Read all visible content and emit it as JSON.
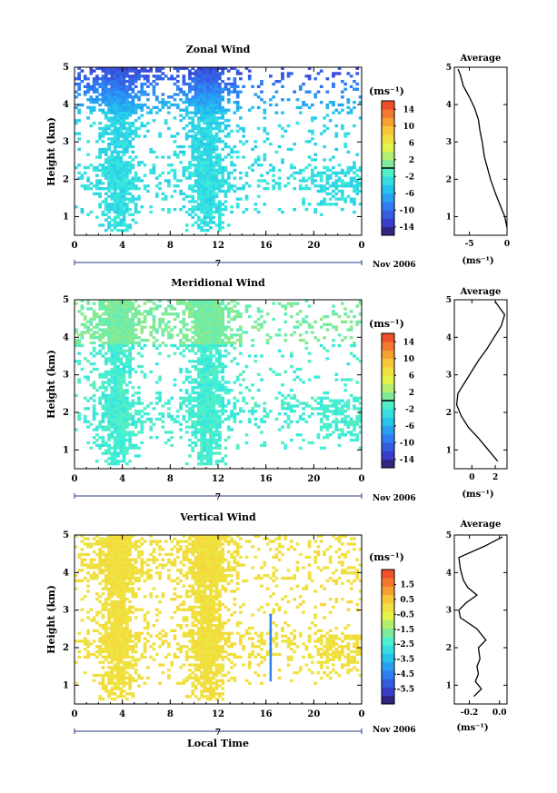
{
  "figure": {
    "y_axis_label": "Height (km)",
    "x_axis_label": "Local Time",
    "date_label": "Nov 2006",
    "day_marker": "7"
  },
  "chart_data": [
    {
      "type": "heatmap",
      "title": "Zonal Wind",
      "xlabel": "",
      "ylabel": "Height (km)",
      "xlim": [
        0,
        24
      ],
      "ylim": [
        0.5,
        5
      ],
      "x_ticks": [
        "0",
        "4",
        "8",
        "12",
        "16",
        "20",
        "0"
      ],
      "y_ticks": [
        "1",
        "2",
        "3",
        "4",
        "5"
      ],
      "colorbar": {
        "unit": "(ms⁻¹)",
        "min": -16,
        "max": 16,
        "tick_values": [
          14,
          10,
          6,
          2,
          -2,
          -6,
          -10,
          -14
        ],
        "tick_labels": [
          "14",
          "10",
          "6",
          "2",
          "-2",
          "-6",
          "-10",
          "-14"
        ],
        "contour_level": 0
      },
      "description_values": {
        "dominant_range": [
          -12,
          -2
        ],
        "upper_levels": -10
      },
      "profile": {
        "title": "Average",
        "xlabel": "(ms⁻¹)",
        "xlim": [
          -7,
          0
        ],
        "x_ticks": [
          "-5",
          "0"
        ],
        "x_tick_values": [
          -5,
          0
        ],
        "height_km": [
          0.7,
          1.0,
          1.3,
          1.6,
          2.0,
          2.3,
          2.6,
          3.0,
          3.3,
          3.6,
          3.9,
          4.2,
          4.5,
          4.8,
          4.95
        ],
        "values": [
          0.0,
          -0.3,
          -0.9,
          -1.5,
          -2.2,
          -2.6,
          -3.0,
          -3.3,
          -3.6,
          -3.8,
          -4.3,
          -5.0,
          -5.8,
          -6.2,
          -6.5
        ]
      }
    },
    {
      "type": "heatmap",
      "title": "Meridional Wind",
      "xlabel": "",
      "ylabel": "Height (km)",
      "xlim": [
        0,
        24
      ],
      "ylim": [
        0.5,
        5
      ],
      "x_ticks": [
        "0",
        "4",
        "8",
        "12",
        "16",
        "20",
        "0"
      ],
      "y_ticks": [
        "1",
        "2",
        "3",
        "4",
        "5"
      ],
      "colorbar": {
        "unit": "(ms⁻¹)",
        "min": -16,
        "max": 16,
        "tick_values": [
          14,
          10,
          6,
          2,
          -2,
          -6,
          -10,
          -14
        ],
        "tick_labels": [
          "14",
          "10",
          "6",
          "2",
          "-2",
          "-6",
          "-10",
          "-14"
        ],
        "contour_level": 0
      },
      "description_values": {
        "dominant_range": [
          -4,
          2
        ]
      },
      "profile": {
        "title": "Average",
        "xlabel": "(ms⁻¹)",
        "xlim": [
          -1.5,
          3
        ],
        "x_ticks": [
          "0",
          "2"
        ],
        "x_tick_values": [
          0,
          2
        ],
        "height_km": [
          0.7,
          1.0,
          1.3,
          1.6,
          1.9,
          2.2,
          2.5,
          2.8,
          3.1,
          3.4,
          3.7,
          4.0,
          4.3,
          4.6,
          4.95
        ],
        "values": [
          2.2,
          1.4,
          0.6,
          -0.3,
          -0.9,
          -1.3,
          -1.2,
          -0.6,
          0.0,
          0.6,
          1.3,
          1.9,
          2.5,
          2.8,
          2.0
        ]
      }
    },
    {
      "type": "heatmap",
      "title": "Vertical Wind",
      "xlabel": "Local Time",
      "ylabel": "Height (km)",
      "xlim": [
        0,
        24
      ],
      "ylim": [
        0.5,
        5
      ],
      "x_ticks": [
        "0",
        "4",
        "8",
        "12",
        "16",
        "20",
        "0"
      ],
      "y_ticks": [
        "1",
        "2",
        "3",
        "4",
        "5"
      ],
      "colorbar": {
        "unit": "(ms⁻¹)",
        "min": -6.5,
        "max": 2.5,
        "tick_values": [
          1.5,
          0.5,
          -0.5,
          -1.5,
          -2.5,
          -3.5,
          -4.5,
          -5.5
        ],
        "tick_labels": [
          "1.5",
          "0.5",
          "-0.5",
          "-1.5",
          "-2.5",
          "-3.5",
          "-4.5",
          "-5.5"
        ]
      },
      "description_values": {
        "dominant_range": [
          -0.5,
          0.5
        ],
        "isolated_feature": {
          "time_h": 16.3,
          "height_km": [
            1.1,
            2.9
          ],
          "value": -4.5
        }
      },
      "profile": {
        "title": "Average",
        "xlabel": "(ms⁻¹)",
        "xlim": [
          -0.3,
          0.05
        ],
        "x_ticks": [
          "-0.2",
          "0.0"
        ],
        "x_tick_values": [
          -0.2,
          0.0
        ],
        "height_km": [
          0.7,
          0.9,
          1.1,
          1.3,
          1.5,
          1.7,
          2.0,
          2.2,
          2.5,
          2.8,
          3.0,
          3.2,
          3.4,
          3.6,
          3.8,
          4.1,
          4.4,
          4.7,
          4.95
        ],
        "values": [
          -0.17,
          -0.12,
          -0.16,
          -0.14,
          -0.15,
          -0.13,
          -0.14,
          -0.09,
          -0.15,
          -0.26,
          -0.27,
          -0.22,
          -0.15,
          -0.21,
          -0.24,
          -0.26,
          -0.27,
          -0.1,
          0.02
        ]
      }
    }
  ]
}
